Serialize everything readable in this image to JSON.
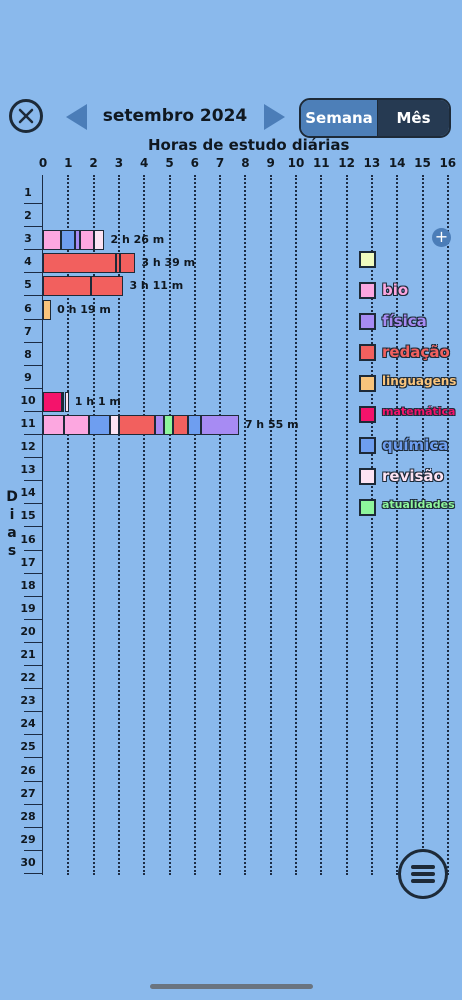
{
  "header": {
    "month_title": "setembro 2024",
    "view_toggle": {
      "week_label": "Semana",
      "month_label": "Mês",
      "selected": "Mês"
    }
  },
  "chart": {
    "title": "Horas de estudo diárias",
    "ylabel": "Dias",
    "xticks": [
      "0",
      "1",
      "2",
      "3",
      "4",
      "5",
      "6",
      "7",
      "8",
      "9",
      "10",
      "11",
      "12",
      "13",
      "14",
      "15",
      "16"
    ],
    "days": [
      "1",
      "2",
      "3",
      "4",
      "5",
      "6",
      "7",
      "8",
      "9",
      "10",
      "11",
      "12",
      "13",
      "14",
      "15",
      "16",
      "17",
      "18",
      "19",
      "20",
      "21",
      "22",
      "23",
      "24",
      "25",
      "26",
      "27",
      "28",
      "29",
      "30"
    ],
    "add_symbol": "+"
  },
  "legend": [
    {
      "name": "",
      "color": "#f0fbbf"
    },
    {
      "name": "bio",
      "color": "#fca7e0"
    },
    {
      "name": "física",
      "color": "#a78bf3"
    },
    {
      "name": "redação",
      "color": "#f2605e"
    },
    {
      "name": "linguagens",
      "color": "#f8c47c"
    },
    {
      "name": "matemática",
      "color": "#f4136b"
    },
    {
      "name": "química",
      "color": "#6e9ef0"
    },
    {
      "name": "revisão",
      "color": "#fde3f3"
    },
    {
      "name": "atualidades",
      "color": "#8ef59c"
    }
  ],
  "chart_data": {
    "type": "bar",
    "orientation": "horizontal",
    "stacked": true,
    "title": "Horas de estudo diárias",
    "xlabel": "",
    "ylabel": "Dias",
    "xlim": [
      0,
      16
    ],
    "categories": [
      "1",
      "2",
      "3",
      "4",
      "5",
      "6",
      "7",
      "8",
      "9",
      "10",
      "11",
      "12",
      "13",
      "14",
      "15",
      "16",
      "17",
      "18",
      "19",
      "20",
      "21",
      "22",
      "23",
      "24",
      "25",
      "26",
      "27",
      "28",
      "29",
      "30"
    ],
    "bars": [
      {
        "day": "3",
        "total_label": "2 h 26 m",
        "segments": [
          {
            "subject": "bio",
            "hours": 0.7
          },
          {
            "subject": "química",
            "hours": 0.55
          },
          {
            "subject": "física",
            "hours": 0.2
          },
          {
            "subject": "bio",
            "hours": 0.55
          },
          {
            "subject": "revisão",
            "hours": 0.43
          }
        ]
      },
      {
        "day": "4",
        "total_label": "3 h 39 m",
        "segments": [
          {
            "subject": "redação",
            "hours": 2.9
          },
          {
            "subject": "redação",
            "hours": 0.15
          },
          {
            "subject": "redação",
            "hours": 0.6
          }
        ]
      },
      {
        "day": "5",
        "total_label": "3 h 11 m",
        "segments": [
          {
            "subject": "redação",
            "hours": 1.9
          },
          {
            "subject": "redação",
            "hours": 1.28
          }
        ]
      },
      {
        "day": "6",
        "total_label": "0 h 19 m",
        "segments": [
          {
            "subject": "linguagens",
            "hours": 0.32
          }
        ]
      },
      {
        "day": "10",
        "total_label": "1 h 1 m",
        "segments": [
          {
            "subject": "matemática",
            "hours": 0.75
          },
          {
            "subject": "física",
            "hours": 0.1
          },
          {
            "subject": "revisão",
            "hours": 0.17
          }
        ]
      },
      {
        "day": "11",
        "total_label": "7 h 55 m",
        "segments": [
          {
            "subject": "bio",
            "hours": 0.83
          },
          {
            "subject": "bio",
            "hours": 1.0
          },
          {
            "subject": "química",
            "hours": 0.83
          },
          {
            "subject": "revisão",
            "hours": 0.33
          },
          {
            "subject": "redação",
            "hours": 1.45
          },
          {
            "subject": "física",
            "hours": 0.34
          },
          {
            "subject": "atualidades",
            "hours": 0.36
          },
          {
            "subject": "redação",
            "hours": 0.6
          },
          {
            "subject": "química",
            "hours": 0.5
          },
          {
            "subject": "física",
            "hours": 1.5
          }
        ]
      }
    ]
  }
}
